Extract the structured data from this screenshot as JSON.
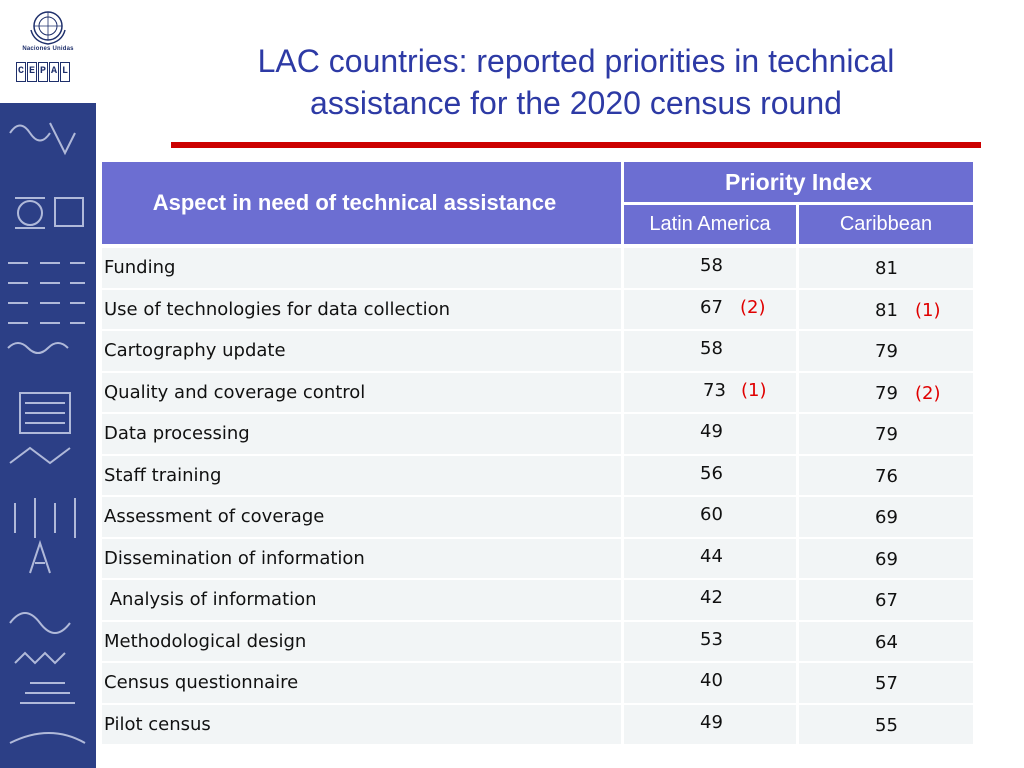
{
  "logo": {
    "org_text": "Naciones Unidas",
    "brand_letters": [
      "C",
      "E",
      "P",
      "A",
      "L"
    ]
  },
  "title": {
    "line1": "LAC countries: reported priorities in technical",
    "line2": "assistance for the 2020 census round"
  },
  "table": {
    "header_aspect": "Aspect in need of technical assistance",
    "header_priority": "Priority Index",
    "header_la": "Latin America",
    "header_car": "Caribbean",
    "rows": [
      {
        "aspect": "Funding",
        "la": "58",
        "la_rank": "",
        "car": "81",
        "car_rank": ""
      },
      {
        "aspect": "Use of technologies for data collection",
        "la": "67",
        "la_rank": "(2)",
        "car": "81",
        "car_rank": "(1)"
      },
      {
        "aspect": "Cartography update",
        "la": "58",
        "la_rank": "",
        "car": "79",
        "car_rank": ""
      },
      {
        "aspect": "Quality and coverage control",
        "la": "73",
        "la_rank": "(1)",
        "car": "79",
        "car_rank": "(2)"
      },
      {
        "aspect": "Data processing",
        "la": "49",
        "la_rank": "",
        "car": "79",
        "car_rank": ""
      },
      {
        "aspect": "Staff training",
        "la": "56",
        "la_rank": "",
        "car": "76",
        "car_rank": ""
      },
      {
        "aspect": "Assessment of coverage",
        "la": "60",
        "la_rank": "",
        "car": "69",
        "car_rank": ""
      },
      {
        "aspect": "Dissemination of information",
        "la": "44",
        "la_rank": "",
        "car": "69",
        "car_rank": ""
      },
      {
        "aspect": " Analysis of information",
        "la": "42",
        "la_rank": "",
        "car": "67",
        "car_rank": ""
      },
      {
        "aspect": "Methodological design",
        "la": "53",
        "la_rank": "",
        "car": "64",
        "car_rank": ""
      },
      {
        "aspect": "Census questionnaire",
        "la": "40",
        "la_rank": "",
        "car": "57",
        "car_rank": ""
      },
      {
        "aspect": "Pilot census",
        "la": "49",
        "la_rank": "",
        "car": "55",
        "car_rank": ""
      }
    ]
  },
  "colors": {
    "title": "#2d3aa5",
    "rule": "#cc0000",
    "header_bg": "#6c6ed2",
    "rank": "#e00000",
    "side_band": "#2c3f86"
  }
}
